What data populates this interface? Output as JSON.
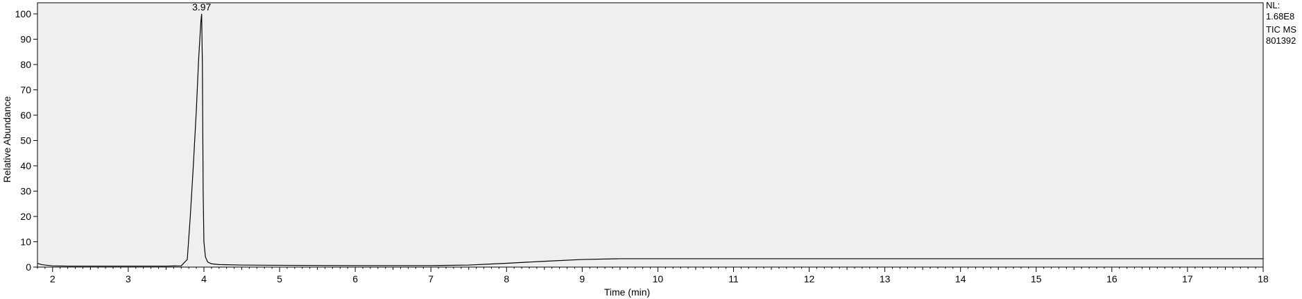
{
  "chart_data": {
    "type": "line",
    "title": "",
    "xlabel": "Time (min)",
    "ylabel": "Relative Abundance",
    "xlim": [
      1.8,
      18
    ],
    "ylim": [
      0,
      100
    ],
    "x_ticks": [
      2,
      3,
      4,
      5,
      6,
      7,
      8,
      9,
      10,
      11,
      12,
      13,
      14,
      15,
      16,
      17,
      18
    ],
    "y_ticks": [
      0,
      10,
      20,
      30,
      40,
      50,
      60,
      70,
      80,
      90,
      100
    ],
    "grid": false,
    "background_color": "#efefef",
    "line_color": "#000000",
    "series": [
      {
        "x": [
          1.8,
          1.85,
          1.9,
          2.0,
          2.2,
          2.5,
          3.0,
          3.5,
          3.7,
          3.78,
          3.82,
          3.86,
          3.9,
          3.93,
          3.95,
          3.96,
          3.97,
          3.98,
          3.99,
          4.0,
          4.02,
          4.05,
          4.1,
          4.2,
          4.5,
          5.0,
          6.0,
          7.0,
          7.5,
          8.0,
          8.5,
          9.0,
          9.5,
          10.0,
          11.0,
          12.0,
          13.0,
          14.0,
          15.0,
          16.0,
          17.0,
          18.0
        ],
        "y": [
          1.5,
          1.0,
          0.8,
          0.5,
          0.4,
          0.4,
          0.4,
          0.4,
          0.5,
          3,
          20,
          40,
          62,
          82,
          92,
          97,
          100,
          80,
          30,
          10,
          4,
          2.0,
          1.3,
          1.0,
          0.8,
          0.7,
          0.6,
          0.6,
          0.8,
          1.5,
          2.3,
          3.0,
          3.3,
          3.3,
          3.3,
          3.3,
          3.3,
          3.3,
          3.3,
          3.3,
          3.3,
          3.3
        ]
      }
    ],
    "annotations": [
      {
        "x": 3.97,
        "y": 100,
        "text": "3.97"
      }
    ]
  },
  "side_info": {
    "nl_label": "NL:",
    "nl_value": "1.68E8",
    "trace_label": "TIC  MS",
    "file_name": "801392"
  }
}
